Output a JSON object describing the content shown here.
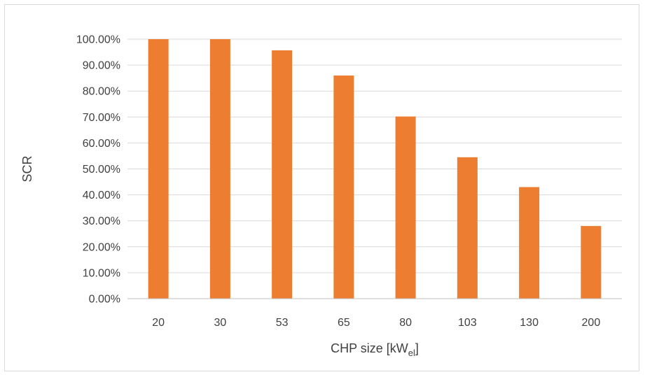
{
  "chart_data": {
    "type": "bar",
    "categories": [
      "20",
      "30",
      "53",
      "65",
      "80",
      "103",
      "130",
      "200"
    ],
    "values": [
      100.0,
      100.0,
      95.7,
      86.0,
      70.2,
      54.5,
      43.0,
      28.0
    ],
    "ylabel": "SCR",
    "xlabel_main": "CHP size [kW",
    "xlabel_sub": "el",
    "xlabel_end": "]",
    "ylim": [
      0,
      100
    ],
    "ytick_step": 10,
    "ytick_labels": [
      "0.00%",
      "10.00%",
      "20.00%",
      "30.00%",
      "40.00%",
      "50.00%",
      "60.00%",
      "70.00%",
      "80.00%",
      "90.00%",
      "100.00%"
    ],
    "grid": true,
    "legend": "none",
    "bar_color": "#ed7d31"
  }
}
